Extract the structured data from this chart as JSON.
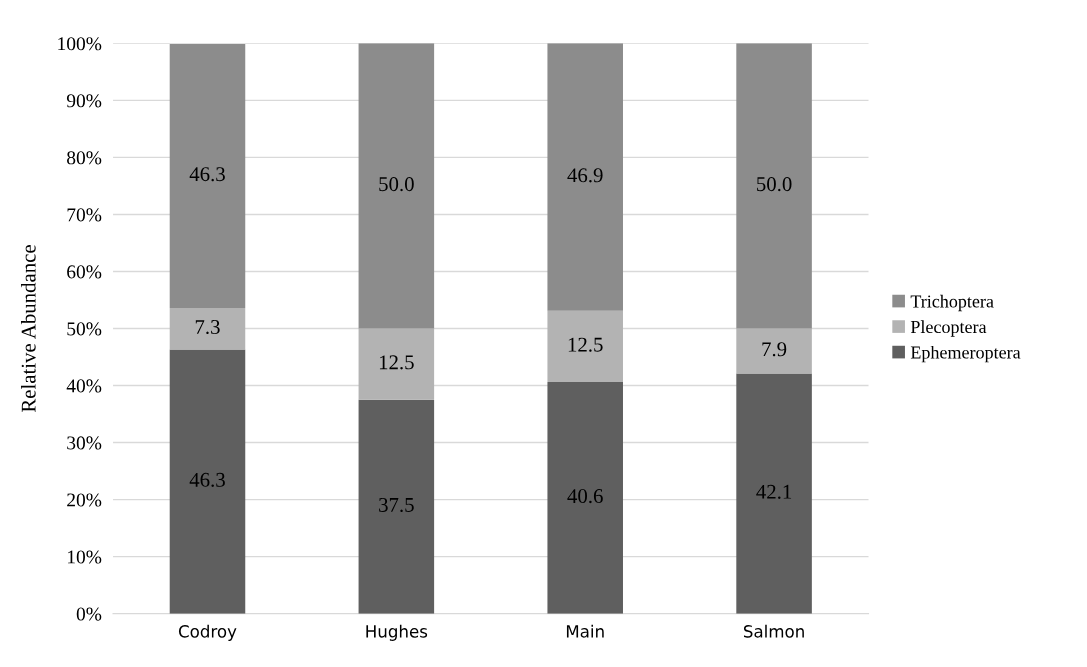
{
  "chart_data": {
    "type": "bar",
    "stacked": true,
    "ylabel": "Relative Abundance",
    "categories": [
      "Codroy",
      "Hughes",
      "Main",
      "Salmon"
    ],
    "series": [
      {
        "name": "Ephemeroptera",
        "color": "#5f5f5f",
        "values": [
          46.3,
          37.5,
          40.6,
          42.1
        ],
        "value_labels": [
          "46.3",
          "37.5",
          "40.6",
          "42.1"
        ]
      },
      {
        "name": "Plecoptera",
        "color": "#b3b3b3",
        "values": [
          7.3,
          12.5,
          12.5,
          7.9
        ],
        "value_labels": [
          "7.3",
          "12.5",
          "12.5",
          "7.9"
        ]
      },
      {
        "name": "Trichoptera",
        "color": "#8c8c8c",
        "values": [
          46.3,
          50,
          46.9,
          50
        ],
        "value_labels": [
          "46.3",
          "50.0",
          "46.9",
          "50.0"
        ]
      }
    ],
    "ylim": [
      0,
      100
    ],
    "yticks": [
      {
        "value": 0,
        "label": "0%"
      },
      {
        "value": 10,
        "label": "10%"
      },
      {
        "value": 20,
        "label": "20%"
      },
      {
        "value": 30,
        "label": "30%"
      },
      {
        "value": 40,
        "label": "40%"
      },
      {
        "value": 50,
        "label": "50%"
      },
      {
        "value": 60,
        "label": "60%"
      },
      {
        "value": 70,
        "label": "70%"
      },
      {
        "value": 80,
        "label": "80%"
      },
      {
        "value": 90,
        "label": "90%"
      },
      {
        "value": 100,
        "label": "100%"
      }
    ],
    "grid": "y",
    "legend": "right"
  }
}
